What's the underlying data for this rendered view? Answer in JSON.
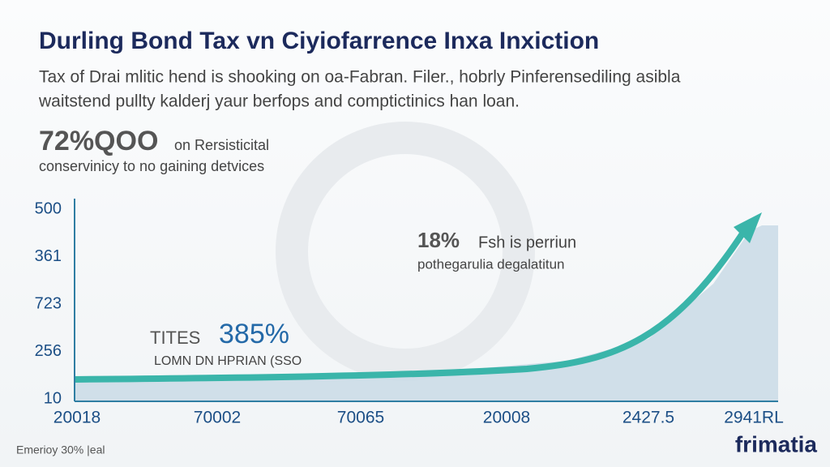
{
  "header": {
    "title": "Durling Bond Tax vn Ciyiofarrence Inxa Inxiction",
    "subtitle": [
      "Tax of Drai mlitic hend is shooking on oa-Fabran. Filer., hobrly Pinferensediling asibla",
      "waitstend pullty kalderj yaur berfops and comptictinics han loan."
    ]
  },
  "stat": {
    "value": "72%QOO",
    "label": "on Rersisticital",
    "caption": "conservinicy to no gaining detvices"
  },
  "axis": {
    "y_labels": [
      "500",
      "361",
      "723",
      "256",
      "10"
    ],
    "x_labels": [
      "20018",
      "70002",
      "70065",
      "20008",
      "2427.5",
      "2941RL"
    ]
  },
  "annotations": [
    {
      "value": "18%",
      "label": "Fsh is perriun",
      "caption": "pothegarulia degalatitun"
    },
    {
      "prefix": "TITES",
      "value": "385%",
      "caption": "LOMN DN HPRIAN (SSO"
    }
  ],
  "footer": {
    "note": "Emerioy 30% |eal",
    "brand": "frimatia"
  }
}
